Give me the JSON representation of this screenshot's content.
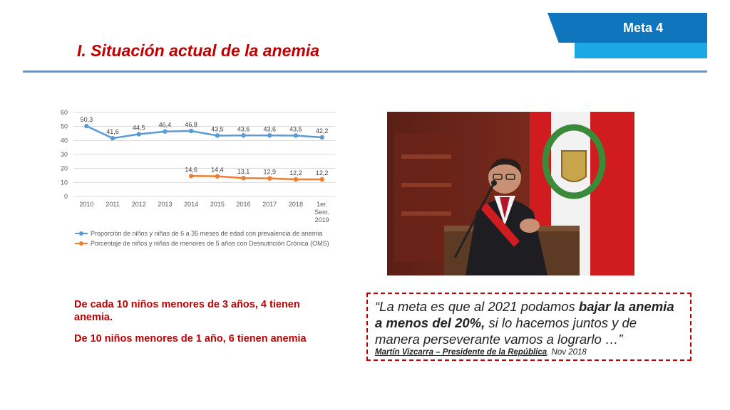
{
  "header": {
    "title": "I. Situación actual de la anemia",
    "tag": "Meta 4"
  },
  "chart_data": {
    "type": "line",
    "categories": [
      "2010",
      "2011",
      "2012",
      "2013",
      "2014",
      "2015",
      "2016",
      "2017",
      "2018",
      "1er. Sem. 2019"
    ],
    "category_lines": [
      [
        "2010"
      ],
      [
        "2011"
      ],
      [
        "2012"
      ],
      [
        "2013"
      ],
      [
        "2014"
      ],
      [
        "2015"
      ],
      [
        "2016"
      ],
      [
        "2017"
      ],
      [
        "2018"
      ],
      [
        "1er.",
        "Sem.",
        "2019"
      ]
    ],
    "series": [
      {
        "name": "Proporción de niños y niñas de 6 a 35 meses de edad con prevalencia de anemia",
        "color": "#5b9bd5",
        "values": [
          50.3,
          41.6,
          44.5,
          46.4,
          46.8,
          43.5,
          43.6,
          43.6,
          43.5,
          42.2
        ],
        "labels": [
          "50,3",
          "41,6",
          "44,5",
          "46,4",
          "46,8",
          "43,5",
          "43,6",
          "43,6",
          "43,5",
          "42,2"
        ]
      },
      {
        "name": "Porcentaje de niños y niñas de menores de 5 años con Desnutrición Crónica (OMS)",
        "color": "#ed7d31",
        "values": [
          null,
          null,
          null,
          null,
          14.6,
          14.4,
          13.1,
          12.9,
          12.2,
          12.2
        ],
        "labels": [
          null,
          null,
          null,
          null,
          "14,6",
          "14,4",
          "13,1",
          "12,9",
          "12,2",
          "12,2"
        ]
      }
    ],
    "yticks": [
      "0",
      "10",
      "20",
      "30",
      "40",
      "50",
      "60"
    ],
    "ylim": [
      0,
      60
    ],
    "grid": true,
    "legend_position": "bottom"
  },
  "stats": {
    "line1": "De cada 10 niños menores de 3 años, 4 tienen anemia.",
    "line2": "De 10 niños menores de 1 año, 6 tienen anemia"
  },
  "quote": {
    "open": "“La meta es que al 2021 podamos ",
    "bold": "bajar la anemia a menos del 20%,",
    "rest": " si lo hacemos juntos y de manera perseverante vamos a lograrlo …”",
    "author": "Martín Vizcarra – Presidente de la República",
    "date": ". Nov 2018"
  },
  "colors": {
    "title": "#c00000",
    "accent": "#0f75bc",
    "rule": "#5b9bd5"
  }
}
